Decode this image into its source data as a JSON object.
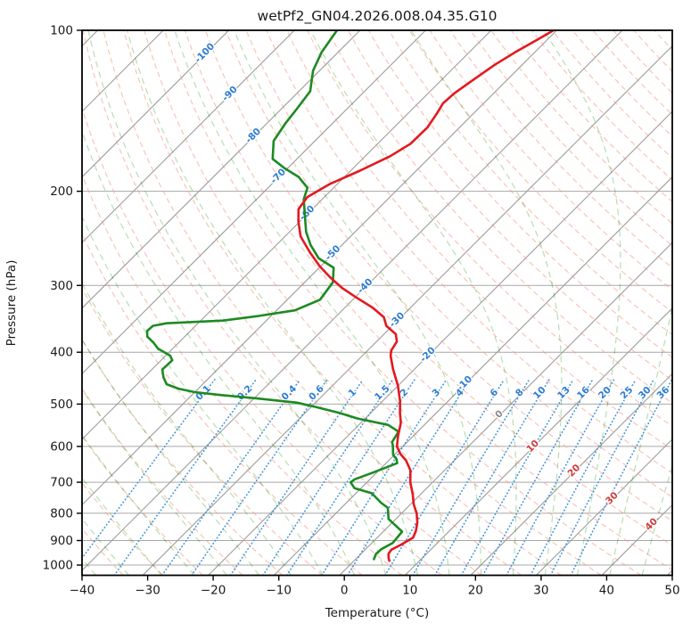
{
  "title": "wetPf2_GN04.2026.008.04.35.G10",
  "axes": {
    "x_label": "Temperature (°C)",
    "y_label": "Pressure (hPa)",
    "x_ticks": [
      -40,
      -30,
      -20,
      -10,
      0,
      10,
      20,
      30,
      40,
      50
    ],
    "x_tick_labels": [
      "−40",
      "−30",
      "−20",
      "−10",
      "0",
      "10",
      "20",
      "30",
      "40",
      "50"
    ],
    "y_ticks": [
      100,
      200,
      300,
      400,
      500,
      600,
      700,
      800,
      900,
      1000
    ],
    "y_tick_labels": [
      "100",
      "200",
      "300",
      "400",
      "500",
      "600",
      "700",
      "800",
      "900",
      "1000"
    ]
  },
  "chart_data": {
    "type": "line",
    "subtype": "skew-t-log-p",
    "title": "wetPf2_GN04.2026.008.04.35.G10",
    "xlabel": "Temperature (°C)",
    "ylabel": "Pressure (hPa)",
    "x_range_c": [
      -40,
      50
    ],
    "pressure_range_hpa": [
      100,
      1045
    ],
    "skew_deg": 45,
    "grid": {
      "isobars_hpa": [
        100,
        200,
        300,
        400,
        500,
        600,
        700,
        800,
        900,
        1000
      ],
      "isotherms_c": {
        "from": -120,
        "to": 50,
        "step": 10
      },
      "dry_adiabats_c": {
        "from": -42,
        "to": 192,
        "step": 6
      },
      "moist_adiabats_c": {
        "from": -60,
        "to": 45,
        "step": 5
      },
      "mixing_ratio_top_hpa": 450
    },
    "isotherm_labels": [
      {
        "t": -100,
        "p": 110,
        "label": "-100",
        "color": "#2d7cd2"
      },
      {
        "t": -90,
        "p": 131,
        "label": "-90",
        "color": "#2d7cd2"
      },
      {
        "t": -80,
        "p": 157,
        "label": "-80",
        "color": "#2d7cd2"
      },
      {
        "t": -70,
        "p": 187,
        "label": "-70",
        "color": "#2d7cd2"
      },
      {
        "t": -60,
        "p": 219,
        "label": "-60",
        "color": "#2d7cd2"
      },
      {
        "t": -50,
        "p": 260,
        "label": "-50",
        "color": "#2d7cd2"
      },
      {
        "t": -40,
        "p": 300,
        "label": "-40",
        "color": "#2d7cd2"
      },
      {
        "t": -30,
        "p": 347,
        "label": "-30",
        "color": "#2d7cd2"
      },
      {
        "t": -20,
        "p": 403,
        "label": "-20",
        "color": "#2d7cd2"
      },
      {
        "t": -10,
        "p": 456,
        "label": "-10",
        "color": "#2d7cd2"
      },
      {
        "t": 0,
        "p": 521,
        "label": "0",
        "color": "#8a8a8a"
      },
      {
        "t": 10,
        "p": 598,
        "label": "10",
        "color": "#cf3a3a"
      },
      {
        "t": 20,
        "p": 664,
        "label": "20",
        "color": "#cf3a3a"
      },
      {
        "t": 30,
        "p": 748,
        "label": "30",
        "color": "#cf3a3a"
      },
      {
        "t": 40,
        "p": 837,
        "label": "40",
        "color": "#cf3a3a"
      }
    ],
    "mixing_ratio_labels_g_kg": [
      0.1,
      0.2,
      0.4,
      0.6,
      1,
      1.5,
      2,
      3,
      4,
      6,
      8,
      10,
      13,
      16,
      20,
      25,
      30,
      36
    ],
    "mixing_ratio_label_p_hpa": 475,
    "series": [
      {
        "name": "temperature",
        "color": "#e3191f",
        "points_p_t": [
          [
            100,
            -50.5
          ],
          [
            104,
            -51.5
          ],
          [
            110,
            -53
          ],
          [
            116,
            -54.2
          ],
          [
            124,
            -55.2
          ],
          [
            131,
            -56
          ],
          [
            137,
            -56.2
          ],
          [
            143,
            -55.6
          ],
          [
            152,
            -54.9
          ],
          [
            163,
            -55
          ],
          [
            172,
            -56.2
          ],
          [
            183,
            -58.6
          ],
          [
            194,
            -61.2
          ],
          [
            205,
            -62.6
          ],
          [
            216,
            -62.1
          ],
          [
            228,
            -60.2
          ],
          [
            243,
            -57.6
          ],
          [
            260,
            -53.8
          ],
          [
            276,
            -50.2
          ],
          [
            290,
            -46.8
          ],
          [
            303,
            -43.5
          ],
          [
            316,
            -39.8
          ],
          [
            330,
            -35.8
          ],
          [
            344,
            -32.6
          ],
          [
            357,
            -30.9
          ],
          [
            370,
            -28.2
          ],
          [
            382,
            -26.9
          ],
          [
            397,
            -26.4
          ],
          [
            406,
            -25.7
          ],
          [
            430,
            -23.3
          ],
          [
            462,
            -20
          ],
          [
            494,
            -17.3
          ],
          [
            520,
            -15.5
          ],
          [
            542,
            -13.9
          ],
          [
            574,
            -12.3
          ],
          [
            600,
            -10.9
          ],
          [
            620,
            -9.2
          ],
          [
            637,
            -7.4
          ],
          [
            665,
            -5.2
          ],
          [
            700,
            -3.4
          ],
          [
            737,
            -1.2
          ],
          [
            770,
            0.5
          ],
          [
            800,
            2.3
          ],
          [
            832,
            3.8
          ],
          [
            864,
            4.9
          ],
          [
            889,
            5.5
          ],
          [
            917,
            4.7
          ],
          [
            936,
            4
          ],
          [
            953,
            4.2
          ],
          [
            971,
            4.9
          ],
          [
            982,
            5.4
          ]
        ]
      },
      {
        "name": "dewpoint",
        "color": "#1d8a22",
        "points_p_t": [
          [
            100,
            -83.5
          ],
          [
            110,
            -82.5
          ],
          [
            119,
            -81
          ],
          [
            130,
            -78.3
          ],
          [
            141,
            -77.6
          ],
          [
            149,
            -77.2
          ],
          [
            161,
            -76.3
          ],
          [
            174,
            -73.7
          ],
          [
            181,
            -70.5
          ],
          [
            188,
            -67
          ],
          [
            197,
            -64
          ],
          [
            207,
            -62.8
          ],
          [
            220,
            -60.5
          ],
          [
            238,
            -57.5
          ],
          [
            252,
            -54.8
          ],
          [
            267,
            -51.5
          ],
          [
            278,
            -47.8
          ],
          [
            296,
            -45.7
          ],
          [
            319,
            -45
          ],
          [
            334,
            -47.2
          ],
          [
            342,
            -51.8
          ],
          [
            349,
            -56.6
          ],
          [
            353,
            -64.8
          ],
          [
            357,
            -66.5
          ],
          [
            365,
            -66.6
          ],
          [
            374,
            -65.7
          ],
          [
            384,
            -63.8
          ],
          [
            394,
            -62.2
          ],
          [
            406,
            -59.3
          ],
          [
            414,
            -58.3
          ],
          [
            431,
            -58.4
          ],
          [
            446,
            -57
          ],
          [
            459,
            -55.5
          ],
          [
            468,
            -53
          ],
          [
            475,
            -50
          ],
          [
            481,
            -45.5
          ],
          [
            488,
            -39.5
          ],
          [
            497,
            -32.8
          ],
          [
            506,
            -29.4
          ],
          [
            519,
            -24.9
          ],
          [
            532,
            -21.2
          ],
          [
            547,
            -15.5
          ],
          [
            563,
            -12.9
          ],
          [
            589,
            -12.3
          ],
          [
            597,
            -11.7
          ],
          [
            622,
            -10.2
          ],
          [
            634,
            -9
          ],
          [
            645,
            -8.3
          ],
          [
            672,
            -10.6
          ],
          [
            691,
            -12.3
          ],
          [
            700,
            -12.5
          ],
          [
            718,
            -11
          ],
          [
            734,
            -7.6
          ],
          [
            764,
            -4.8
          ],
          [
            782,
            -2.9
          ],
          [
            820,
            -1.1
          ],
          [
            866,
            2.9
          ],
          [
            909,
            3.2
          ],
          [
            934,
            2.4
          ],
          [
            953,
            2.3
          ],
          [
            975,
            2.8
          ]
        ]
      }
    ],
    "colors": {
      "isotherm_line": "#9c9c9c",
      "isobar_line": "#a8a8a8",
      "dry_adiabat": "#f0957f",
      "moist_adiabat": "#86c97e",
      "mixing_ratio_line": "#3f93d9",
      "mixing_ratio_label": "#2d7cd2",
      "spine": "#000000"
    }
  }
}
